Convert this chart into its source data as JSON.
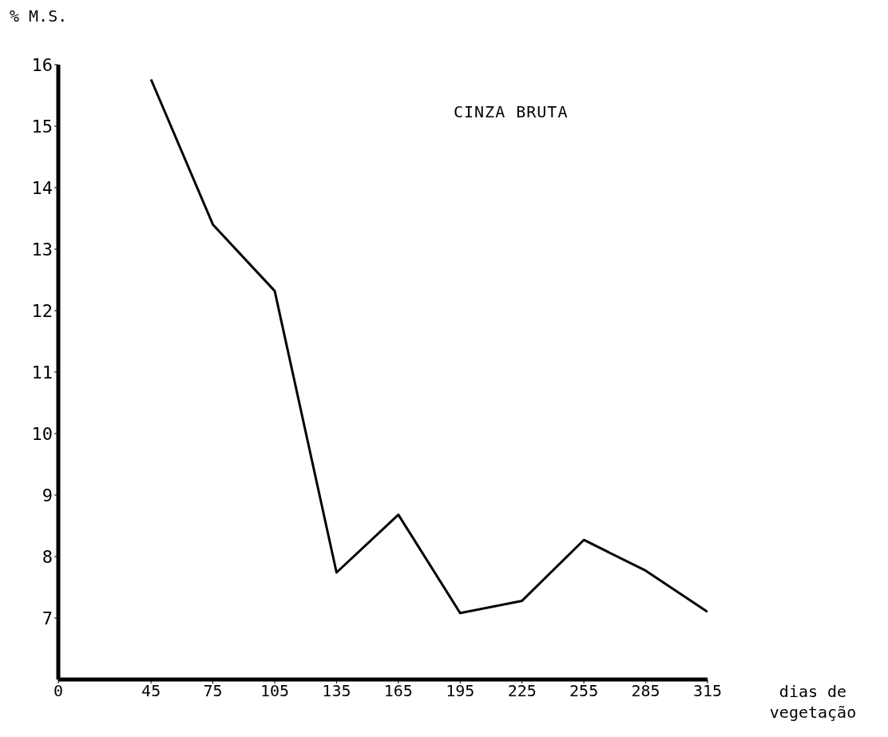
{
  "chart_data": {
    "type": "line",
    "title": "CINZA BRUTA",
    "ylabel": "% M.S.",
    "xlabel": "dias de vegetação",
    "x": [
      45,
      75,
      105,
      135,
      165,
      195,
      225,
      255,
      285,
      315
    ],
    "series": [
      {
        "color": "#000000",
        "values": [
          15.76,
          13.4,
          12.32,
          7.74,
          8.68,
          7.08,
          7.28,
          8.27,
          7.77,
          7.1
        ]
      }
    ],
    "xlim": [
      0,
      315
    ],
    "xticks": [
      0,
      45,
      75,
      105,
      135,
      165,
      195,
      225,
      255,
      285,
      315
    ],
    "ylim": [
      6,
      16
    ],
    "yticks": [
      7,
      8,
      9,
      10,
      11,
      12,
      13,
      14,
      15,
      16
    ],
    "grid": false,
    "legend": false,
    "marker": "none",
    "line_style": "solid"
  }
}
